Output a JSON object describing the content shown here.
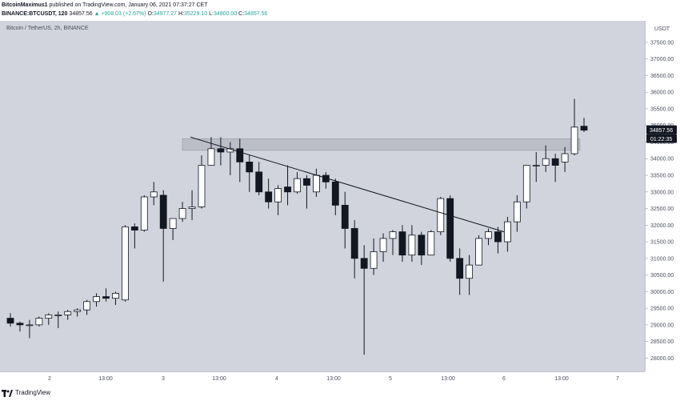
{
  "header": {
    "author": "BitcoinMaximus1",
    "published_text": "published on TradingView.com, January 06, 2021 07:37:27 CET",
    "symbol_line": "BINANCE:BTCUSDT, 120",
    "last_price": "34857.56",
    "change": "▲ +908.03 (+2.67%)",
    "o_label": "O:",
    "o_value": "34977.27",
    "h_label": "H:",
    "h_value": "35229.10",
    "l_label": "L:",
    "l_value": "34800.00",
    "c_label": "C:",
    "c_value": "34857.56"
  },
  "chart_data": {
    "type": "candlestick",
    "symbol_label": "Bitcoin / TetherUS, 2h, BINANCE",
    "currency": "USDT",
    "y_ticks": [
      28000,
      28500,
      29000,
      29500,
      30000,
      30500,
      31000,
      31500,
      32000,
      32500,
      33000,
      33500,
      34000,
      34500,
      35000,
      35500,
      36000,
      36500,
      37000,
      37500
    ],
    "ylim": [
      27600,
      38100
    ],
    "x_ticks": [
      "2",
      "13:00",
      "3",
      "13:00",
      "4",
      "13:00",
      "5",
      "13:00",
      "6",
      "13:00",
      "7"
    ],
    "last_price_label": "34857.56",
    "countdown_label": "01:22:35",
    "colors": {
      "up_body": "#ffffff",
      "down_body": "#131722",
      "wick": "#131722",
      "background": "#d1d4dc",
      "price_badge": "#131722"
    },
    "resistance_zone": [
      34250,
      34600
    ],
    "trendline": [
      {
        "bar": 19,
        "price": 34650
      },
      {
        "bar": 52,
        "price": 31800
      }
    ],
    "candles": [
      [
        29200,
        29350,
        28950,
        29050
      ],
      [
        29050,
        29100,
        28800,
        29000
      ],
      [
        29000,
        29150,
        28600,
        29000
      ],
      [
        29000,
        29250,
        28950,
        29200
      ],
      [
        29200,
        29350,
        29000,
        29300
      ],
      [
        29300,
        29400,
        28900,
        29300
      ],
      [
        29300,
        29450,
        29150,
        29400
      ],
      [
        29400,
        29500,
        29250,
        29450
      ],
      [
        29450,
        29750,
        29300,
        29700
      ],
      [
        29700,
        29950,
        29550,
        29850
      ],
      [
        29850,
        30100,
        29700,
        29800
      ],
      [
        29800,
        30000,
        29600,
        29950
      ],
      [
        29750,
        32000,
        29700,
        31950
      ],
      [
        31950,
        32050,
        31300,
        31850
      ],
      [
        31850,
        32900,
        31800,
        32850
      ],
      [
        32850,
        33300,
        32600,
        33000
      ],
      [
        32900,
        33050,
        30300,
        31900
      ],
      [
        31900,
        32150,
        31550,
        32200
      ],
      [
        32200,
        32700,
        32100,
        32500
      ],
      [
        32500,
        33050,
        32150,
        32550
      ],
      [
        32550,
        34100,
        32500,
        33800
      ],
      [
        33800,
        34650,
        33800,
        34300
      ],
      [
        34300,
        34650,
        33800,
        34200
      ],
      [
        34200,
        34500,
        33500,
        34300
      ],
      [
        34300,
        34600,
        33300,
        33900
      ],
      [
        33900,
        34100,
        33000,
        33600
      ],
      [
        33600,
        33900,
        32900,
        33000
      ],
      [
        33000,
        33400,
        32500,
        32700
      ],
      [
        32700,
        33200,
        32300,
        33100
      ],
      [
        33150,
        33800,
        32600,
        33000
      ],
      [
        33000,
        33600,
        32950,
        33400
      ],
      [
        33400,
        33500,
        32500,
        33200
      ],
      [
        33000,
        33700,
        32850,
        33500
      ],
      [
        33500,
        33600,
        33100,
        33300
      ],
      [
        33300,
        33400,
        32300,
        32600
      ],
      [
        32600,
        33000,
        31300,
        31900
      ],
      [
        31900,
        32150,
        30400,
        31000
      ],
      [
        31000,
        31400,
        28100,
        30700
      ],
      [
        30700,
        31600,
        30500,
        31200
      ],
      [
        31200,
        31750,
        30900,
        31600
      ],
      [
        31600,
        31850,
        31100,
        31800
      ],
      [
        31800,
        32000,
        30900,
        31100
      ],
      [
        31100,
        32000,
        30900,
        31700
      ],
      [
        31700,
        31800,
        30800,
        31100
      ],
      [
        31100,
        31850,
        31100,
        31800
      ],
      [
        31800,
        32850,
        31700,
        32800
      ],
      [
        32800,
        32900,
        30900,
        31000
      ],
      [
        31000,
        31300,
        29900,
        30400
      ],
      [
        30400,
        31100,
        29900,
        30800
      ],
      [
        30800,
        31700,
        30800,
        31600
      ],
      [
        31600,
        31900,
        31400,
        31800
      ],
      [
        31800,
        31950,
        31150,
        31500
      ],
      [
        31500,
        32250,
        31200,
        32100
      ],
      [
        32100,
        32900,
        31800,
        32700
      ],
      [
        32700,
        33800,
        32500,
        33800
      ],
      [
        33800,
        34200,
        33300,
        33800
      ],
      [
        33800,
        34400,
        33600,
        34000
      ],
      [
        34000,
        34150,
        33300,
        33800
      ],
      [
        33900,
        34350,
        33600,
        34150
      ],
      [
        34150,
        35800,
        34100,
        34950
      ],
      [
        34977.27,
        35229.1,
        34800,
        34857.56
      ]
    ]
  }
}
